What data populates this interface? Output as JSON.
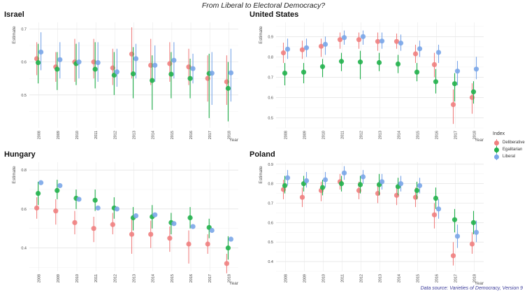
{
  "title": "From Liberal to Electoral Democracy?",
  "source": "Data source: Varieties of Democracy, Version 9",
  "legend": {
    "title": "Index",
    "items": [
      {
        "label": "Deliberative",
        "color": "#f08080"
      },
      {
        "label": "Egalitarian",
        "color": "#22b14c"
      },
      {
        "label": "Liberal",
        "color": "#7aa6e8"
      }
    ]
  },
  "chart_data": [
    {
      "type": "scatter",
      "title": "Israel",
      "ylabel": "Estimate",
      "xlabel": "Year",
      "x": [
        "2008",
        "2009",
        "2010",
        "2011",
        "2012",
        "2013",
        "2014",
        "2015",
        "2016",
        "2017",
        "2018"
      ],
      "ylim": [
        0.4,
        0.72
      ],
      "yticks": [
        0.5,
        0.6,
        0.7
      ],
      "series": [
        {
          "name": "Deliberative",
          "values": [
            0.61,
            0.585,
            0.6,
            0.6,
            0.582,
            0.624,
            0.59,
            0.595,
            0.585,
            0.55,
            0.54
          ],
          "low": [
            0.56,
            0.54,
            0.54,
            0.55,
            0.53,
            0.55,
            0.53,
            0.54,
            0.53,
            0.48,
            0.47
          ],
          "high": [
            0.66,
            0.63,
            0.67,
            0.67,
            0.64,
            0.705,
            0.67,
            0.66,
            0.64,
            0.62,
            0.62
          ]
        },
        {
          "name": "Egalitarian",
          "values": [
            0.598,
            0.578,
            0.595,
            0.578,
            0.56,
            0.564,
            0.544,
            0.563,
            0.55,
            0.565,
            0.52
          ],
          "low": [
            0.535,
            0.515,
            0.53,
            0.52,
            0.5,
            0.49,
            0.455,
            0.49,
            0.49,
            0.43,
            0.42
          ],
          "high": [
            0.655,
            0.63,
            0.655,
            0.66,
            0.63,
            0.645,
            0.62,
            0.63,
            0.61,
            0.625,
            0.6
          ]
        },
        {
          "name": "Liberal",
          "values": [
            0.63,
            0.607,
            0.6,
            0.598,
            0.57,
            0.61,
            0.59,
            0.605,
            0.58,
            0.566,
            0.567
          ],
          "low": [
            0.575,
            0.55,
            0.55,
            0.54,
            0.525,
            0.55,
            0.54,
            0.55,
            0.535,
            0.47,
            0.48
          ],
          "high": [
            0.69,
            0.66,
            0.66,
            0.66,
            0.64,
            0.655,
            0.65,
            0.66,
            0.625,
            0.63,
            0.64
          ]
        }
      ]
    },
    {
      "type": "scatter",
      "title": "United States",
      "ylabel": "Estimate",
      "xlabel": "Year",
      "x": [
        "2008",
        "2009",
        "2010",
        "2011",
        "2012",
        "2013",
        "2014",
        "2015",
        "2016",
        "2017",
        "2018"
      ],
      "ylim": [
        0.45,
        0.97
      ],
      "yticks": [
        0.5,
        0.6,
        0.7,
        0.8,
        0.9
      ],
      "series": [
        {
          "name": "Deliberative",
          "values": [
            0.82,
            0.835,
            0.852,
            0.885,
            0.885,
            0.876,
            0.876,
            0.815,
            0.762,
            0.565,
            0.6
          ],
          "low": [
            0.77,
            0.79,
            0.8,
            0.84,
            0.84,
            0.83,
            0.84,
            0.77,
            0.7,
            0.47,
            0.52
          ],
          "high": [
            0.87,
            0.88,
            0.89,
            0.92,
            0.92,
            0.92,
            0.915,
            0.86,
            0.82,
            0.64,
            0.67
          ]
        },
        {
          "name": "Egalitarian",
          "values": [
            0.72,
            0.725,
            0.752,
            0.778,
            0.775,
            0.772,
            0.765,
            0.725,
            0.678,
            0.668,
            0.628
          ],
          "low": [
            0.66,
            0.67,
            0.7,
            0.73,
            0.69,
            0.73,
            0.72,
            0.68,
            0.62,
            0.58,
            0.57
          ],
          "high": [
            0.77,
            0.77,
            0.79,
            0.82,
            0.83,
            0.82,
            0.81,
            0.77,
            0.74,
            0.72,
            0.68
          ]
        },
        {
          "name": "Liberal",
          "values": [
            0.838,
            0.845,
            0.862,
            0.895,
            0.9,
            0.878,
            0.868,
            0.84,
            0.822,
            0.73,
            0.74
          ],
          "low": [
            0.79,
            0.8,
            0.81,
            0.86,
            0.86,
            0.84,
            0.83,
            0.8,
            0.77,
            0.66,
            0.69
          ],
          "high": [
            0.89,
            0.89,
            0.9,
            0.93,
            0.93,
            0.92,
            0.91,
            0.88,
            0.86,
            0.78,
            0.8
          ]
        }
      ]
    },
    {
      "type": "scatter",
      "title": "Hungary",
      "ylabel": "Estimate",
      "xlabel": "Year",
      "x": [
        "2008",
        "2009",
        "2010",
        "2011",
        "2012",
        "2013",
        "2014",
        "2015",
        "2016",
        "2017",
        "2018"
      ],
      "ylim": [
        0.28,
        0.84
      ],
      "yticks": [
        0.4,
        0.6,
        0.8
      ],
      "series": [
        {
          "name": "Deliberative",
          "values": [
            0.605,
            0.59,
            0.53,
            0.5,
            0.52,
            0.47,
            0.47,
            0.45,
            0.42,
            0.42,
            0.32
          ],
          "low": [
            0.55,
            0.52,
            0.47,
            0.43,
            0.47,
            0.37,
            0.4,
            0.38,
            0.32,
            0.37,
            0.27
          ],
          "high": [
            0.66,
            0.65,
            0.59,
            0.56,
            0.58,
            0.55,
            0.54,
            0.51,
            0.49,
            0.47,
            0.37
          ]
        },
        {
          "name": "Egalitarian",
          "values": [
            0.68,
            0.695,
            0.655,
            0.645,
            0.605,
            0.555,
            0.56,
            0.53,
            0.555,
            0.505,
            0.4
          ],
          "low": [
            0.62,
            0.65,
            0.6,
            0.59,
            0.55,
            0.49,
            0.5,
            0.47,
            0.5,
            0.45,
            0.34
          ],
          "high": [
            0.74,
            0.75,
            0.7,
            0.7,
            0.66,
            0.61,
            0.62,
            0.58,
            0.61,
            0.55,
            0.46
          ]
        },
        {
          "name": "Liberal",
          "values": [
            0.735,
            0.72,
            0.65,
            0.605,
            0.6,
            0.565,
            0.57,
            0.525,
            0.51,
            0.49,
            0.445
          ]
        }
      ]
    },
    {
      "type": "scatter",
      "title": "Poland",
      "ylabel": "Estimate",
      "xlabel": "Year",
      "x": [
        "2008",
        "2009",
        "2010",
        "2011",
        "2012",
        "2013",
        "2014",
        "2015",
        "2016",
        "2017",
        "2018"
      ],
      "ylim": [
        0.35,
        0.91
      ],
      "yticks": [
        0.4,
        0.5,
        0.6,
        0.7,
        0.8,
        0.9
      ],
      "series": [
        {
          "name": "Deliberative",
          "values": [
            0.77,
            0.73,
            0.765,
            0.81,
            0.765,
            0.75,
            0.74,
            0.73,
            0.64,
            0.43,
            0.49
          ],
          "low": [
            0.72,
            0.68,
            0.71,
            0.77,
            0.72,
            0.7,
            0.69,
            0.68,
            0.57,
            0.38,
            0.44
          ],
          "high": [
            0.82,
            0.78,
            0.81,
            0.85,
            0.81,
            0.8,
            0.79,
            0.78,
            0.7,
            0.5,
            0.55
          ]
        },
        {
          "name": "Egalitarian",
          "values": [
            0.79,
            0.8,
            0.78,
            0.8,
            0.795,
            0.795,
            0.785,
            0.765,
            0.725,
            0.615,
            0.6
          ],
          "low": [
            0.75,
            0.76,
            0.74,
            0.76,
            0.75,
            0.74,
            0.74,
            0.72,
            0.67,
            0.55,
            0.54
          ],
          "high": [
            0.84,
            0.84,
            0.82,
            0.84,
            0.84,
            0.85,
            0.83,
            0.81,
            0.78,
            0.67,
            0.66
          ]
        },
        {
          "name": "Liberal",
          "values": [
            0.83,
            0.815,
            0.82,
            0.855,
            0.835,
            0.81,
            0.8,
            0.79,
            0.67,
            0.53,
            0.55
          ],
          "low": [
            0.79,
            0.78,
            0.78,
            0.82,
            0.8,
            0.77,
            0.76,
            0.75,
            0.62,
            0.47,
            0.5
          ],
          "high": [
            0.87,
            0.86,
            0.86,
            0.89,
            0.87,
            0.85,
            0.84,
            0.83,
            0.72,
            0.59,
            0.61
          ]
        }
      ]
    }
  ]
}
